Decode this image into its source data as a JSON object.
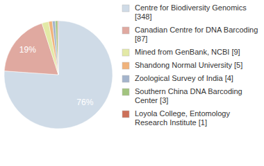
{
  "chart_data": {
    "type": "pie",
    "categories": [
      "Centre for Biodiversity Genomics [348]",
      "Canadian Centre for DNA Barcoding [87]",
      "Mined from GenBank, NCBI [9]",
      "Shandong Normal University [5]",
      "Zoological Survey of India [4]",
      "Southern China DNA Barcoding Center [3]",
      "Loyola College, Entomology Research Institute [1]"
    ],
    "values": [
      76.1,
      19.0,
      2.0,
      1.1,
      0.9,
      0.7,
      0.2
    ],
    "value_labels": [
      "76%",
      "19%",
      null,
      null,
      null,
      null,
      null
    ],
    "data_labels": true,
    "colors": [
      "#cfdbe7",
      "#e0a9a0",
      "#e3e9a6",
      "#f0b37c",
      "#a4b4cc",
      "#a2c47f",
      "#cc7159"
    ],
    "legend": "right"
  }
}
